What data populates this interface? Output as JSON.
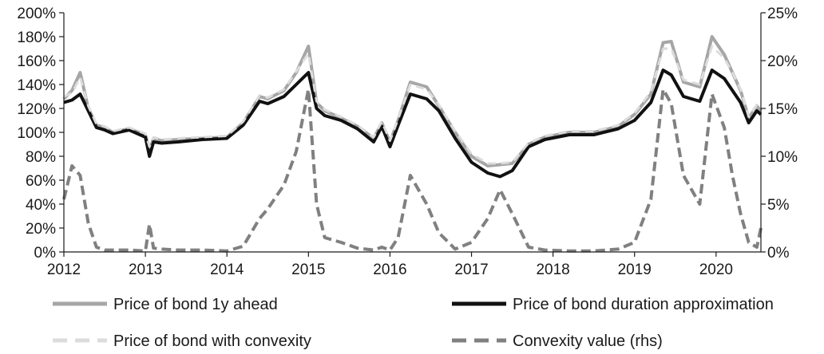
{
  "chart_data": {
    "type": "line",
    "title": "",
    "xlabel": "",
    "ylabel": "",
    "xlim": [
      2012,
      2020.55
    ],
    "ylim": [
      0,
      200
    ],
    "y2lim": [
      0,
      25
    ],
    "grid": false,
    "legend_position": "bottom",
    "x_ticks": [
      "2012",
      "2013",
      "2014",
      "2015",
      "2016",
      "2017",
      "2018",
      "2019",
      "2020"
    ],
    "y_ticks": [
      "0%",
      "20%",
      "40%",
      "60%",
      "80%",
      "100%",
      "120%",
      "140%",
      "160%",
      "180%",
      "200%"
    ],
    "y2_ticks": [
      "0%",
      "5%",
      "10%",
      "15%",
      "20%",
      "25%"
    ],
    "x": [
      2012.0,
      2012.1,
      2012.2,
      2012.3,
      2012.4,
      2012.5,
      2012.6,
      2012.8,
      2013.0,
      2013.05,
      2013.1,
      2013.2,
      2013.4,
      2013.7,
      2014.0,
      2014.2,
      2014.4,
      2014.5,
      2014.7,
      2014.85,
      2015.0,
      2015.1,
      2015.2,
      2015.4,
      2015.6,
      2015.8,
      2015.9,
      2016.0,
      2016.1,
      2016.25,
      2016.45,
      2016.6,
      2016.8,
      2017.0,
      2017.2,
      2017.35,
      2017.5,
      2017.7,
      2017.9,
      2018.2,
      2018.5,
      2018.8,
      2019.0,
      2019.2,
      2019.35,
      2019.45,
      2019.6,
      2019.8,
      2019.95,
      2020.1,
      2020.2,
      2020.3,
      2020.4,
      2020.5,
      2020.55
    ],
    "series": [
      {
        "name": "Price of bond 1y ahead",
        "axis": "left",
        "color": "#a6a6a6",
        "dash": "solid",
        "values": [
          128,
          135,
          150,
          120,
          106,
          104,
          100,
          103,
          98,
          85,
          95,
          93,
          94,
          95,
          96,
          108,
          130,
          128,
          135,
          150,
          172,
          125,
          118,
          112,
          105,
          95,
          108,
          92,
          110,
          142,
          138,
          122,
          100,
          80,
          72,
          73,
          74,
          90,
          96,
          100,
          100,
          105,
          115,
          132,
          175,
          176,
          142,
          138,
          180,
          165,
          150,
          135,
          112,
          122,
          118
        ]
      },
      {
        "name": "Price of bond duration approximation",
        "axis": "left",
        "color": "#111111",
        "dash": "solid",
        "values": [
          125,
          127,
          132,
          118,
          104,
          102,
          99,
          102,
          96,
          80,
          92,
          91,
          92,
          94,
          95,
          106,
          126,
          124,
          130,
          140,
          150,
          120,
          114,
          110,
          103,
          92,
          105,
          88,
          106,
          132,
          128,
          118,
          95,
          75,
          66,
          63,
          68,
          88,
          94,
          98,
          98,
          103,
          110,
          125,
          152,
          148,
          130,
          126,
          152,
          145,
          135,
          125,
          108,
          118,
          115
        ]
      },
      {
        "name": "Price of bond with convexity",
        "axis": "left",
        "color": "#dcdcdc",
        "dash": "dashed",
        "values": [
          130,
          133,
          146,
          122,
          107,
          105,
          101,
          104,
          99,
          88,
          96,
          94,
          95,
          96,
          97,
          109,
          131,
          129,
          136,
          151,
          166,
          126,
          119,
          113,
          106,
          96,
          109,
          93,
          111,
          140,
          136,
          123,
          101,
          82,
          74,
          74,
          75,
          91,
          97,
          101,
          101,
          106,
          116,
          134,
          170,
          170,
          144,
          140,
          172,
          162,
          150,
          136,
          113,
          123,
          119
        ]
      },
      {
        "name": "Convexity value (rhs)",
        "axis": "right",
        "color": "#808080",
        "dash": "dashed",
        "values": [
          5.5,
          9.0,
          8.0,
          3.0,
          0.5,
          0.2,
          0.2,
          0.2,
          0.1,
          2.9,
          0.4,
          0.3,
          0.2,
          0.2,
          0.1,
          0.6,
          3.5,
          4.5,
          7.0,
          10.5,
          17.0,
          5.0,
          1.5,
          1.0,
          0.4,
          0.2,
          0.5,
          0.2,
          1.5,
          8.0,
          5.0,
          2.0,
          0.3,
          1.0,
          3.5,
          6.5,
          4.0,
          0.5,
          0.2,
          0.1,
          0.1,
          0.3,
          1.0,
          5.5,
          17.0,
          15.5,
          8.0,
          5.0,
          16.5,
          13.0,
          8.0,
          4.0,
          1.0,
          0.5,
          2.5
        ]
      }
    ]
  }
}
